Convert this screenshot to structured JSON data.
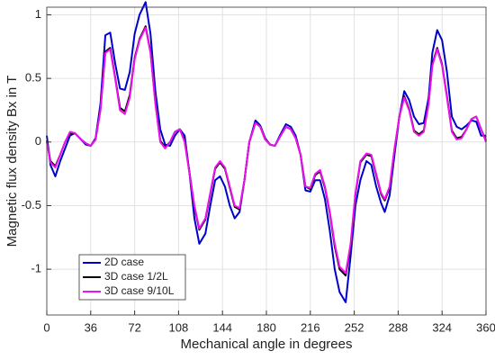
{
  "chart_data": {
    "type": "line",
    "xlabel": "Mechanical angle in degrees",
    "ylabel": "Magnetic flux density Bx in T",
    "x": [
      0,
      3,
      7,
      11,
      15,
      19,
      23,
      28,
      32,
      36,
      40,
      44,
      48,
      52,
      56,
      60,
      64,
      68,
      72,
      76,
      81,
      85,
      89,
      93,
      97,
      101,
      105,
      109,
      113,
      117,
      121,
      125,
      130,
      134,
      138,
      142,
      146,
      150,
      154,
      158,
      162,
      166,
      171,
      175,
      179,
      183,
      187,
      191,
      196,
      200,
      204,
      208,
      212,
      216,
      220,
      224,
      228,
      232,
      236,
      240,
      245,
      249,
      253,
      257,
      262,
      266,
      270,
      274,
      277,
      281,
      285,
      289,
      293,
      297,
      301,
      305,
      309,
      313,
      316,
      320,
      324,
      328,
      332,
      336,
      340,
      344,
      348,
      352,
      356,
      360
    ],
    "series": [
      {
        "name": "2D case",
        "color": "#0000cc",
        "values": [
          0.05,
          -0.18,
          -0.27,
          -0.15,
          -0.05,
          0.05,
          0.07,
          0.02,
          -0.02,
          -0.03,
          0.03,
          0.3,
          0.84,
          0.86,
          0.62,
          0.42,
          0.41,
          0.55,
          0.85,
          1.0,
          1.1,
          0.85,
          0.4,
          0.1,
          -0.02,
          -0.03,
          0.05,
          0.1,
          0.05,
          -0.25,
          -0.6,
          -0.8,
          -0.72,
          -0.5,
          -0.3,
          -0.27,
          -0.35,
          -0.5,
          -0.6,
          -0.55,
          -0.3,
          0.0,
          0.17,
          0.13,
          0.03,
          -0.02,
          -0.03,
          0.05,
          0.14,
          0.12,
          0.05,
          -0.1,
          -0.38,
          -0.39,
          -0.3,
          -0.3,
          -0.45,
          -0.7,
          -1.0,
          -1.18,
          -1.26,
          -0.9,
          -0.5,
          -0.3,
          -0.15,
          -0.18,
          -0.35,
          -0.48,
          -0.55,
          -0.42,
          -0.1,
          0.2,
          0.4,
          0.33,
          0.2,
          0.14,
          0.15,
          0.35,
          0.7,
          0.88,
          0.8,
          0.55,
          0.2,
          0.12,
          0.1,
          0.13,
          0.17,
          0.16,
          0.05,
          0.05
        ]
      },
      {
        "name": "3D case 1/2L",
        "color": "#000000",
        "values": [
          0.01,
          -0.15,
          -0.19,
          -0.1,
          0.0,
          0.07,
          0.07,
          0.02,
          -0.01,
          -0.03,
          0.02,
          0.26,
          0.71,
          0.74,
          0.51,
          0.27,
          0.24,
          0.37,
          0.66,
          0.81,
          0.91,
          0.71,
          0.31,
          0.01,
          -0.04,
          0.0,
          0.08,
          0.1,
          0.01,
          -0.24,
          -0.51,
          -0.69,
          -0.61,
          -0.41,
          -0.21,
          -0.16,
          -0.21,
          -0.36,
          -0.51,
          -0.53,
          -0.3,
          0.0,
          0.15,
          0.12,
          0.02,
          -0.02,
          -0.03,
          0.04,
          0.12,
          0.1,
          0.03,
          -0.1,
          -0.35,
          -0.37,
          -0.26,
          -0.23,
          -0.36,
          -0.56,
          -0.82,
          -1.0,
          -1.05,
          -0.82,
          -0.41,
          -0.16,
          -0.1,
          -0.11,
          -0.26,
          -0.41,
          -0.46,
          -0.36,
          -0.06,
          0.2,
          0.36,
          0.26,
          0.09,
          0.06,
          0.09,
          0.31,
          0.61,
          0.74,
          0.61,
          0.36,
          0.09,
          0.03,
          0.04,
          0.1,
          0.18,
          0.2,
          0.1,
          0.01
        ]
      },
      {
        "name": "3D case 9/10L",
        "color": "#ee11ee",
        "values": [
          0.0,
          -0.16,
          -0.2,
          -0.1,
          0.0,
          0.08,
          0.07,
          0.02,
          -0.01,
          -0.03,
          0.02,
          0.25,
          0.7,
          0.73,
          0.5,
          0.25,
          0.22,
          0.35,
          0.65,
          0.8,
          0.9,
          0.7,
          0.3,
          0.0,
          -0.05,
          0.0,
          0.08,
          0.1,
          0.0,
          -0.25,
          -0.5,
          -0.68,
          -0.6,
          -0.4,
          -0.2,
          -0.15,
          -0.2,
          -0.35,
          -0.5,
          -0.52,
          -0.3,
          0.0,
          0.15,
          0.12,
          0.02,
          -0.02,
          -0.03,
          0.04,
          0.12,
          0.1,
          0.03,
          -0.1,
          -0.35,
          -0.36,
          -0.25,
          -0.22,
          -0.35,
          -0.55,
          -0.8,
          -0.98,
          -1.03,
          -0.8,
          -0.4,
          -0.15,
          -0.09,
          -0.1,
          -0.25,
          -0.4,
          -0.45,
          -0.35,
          -0.05,
          0.2,
          0.35,
          0.25,
          0.08,
          0.05,
          0.08,
          0.3,
          0.6,
          0.73,
          0.6,
          0.35,
          0.08,
          0.02,
          0.03,
          0.1,
          0.18,
          0.2,
          0.1,
          0.0
        ]
      }
    ],
    "xlim": [
      0,
      360
    ],
    "xticks": [
      0,
      36,
      72,
      108,
      144,
      180,
      216,
      252,
      288,
      324,
      360
    ],
    "ylim": [
      -1.36,
      1.06
    ],
    "yticks": [
      -1,
      -0.5,
      0,
      0.5,
      1
    ],
    "grid": true,
    "legend": "lower left"
  }
}
